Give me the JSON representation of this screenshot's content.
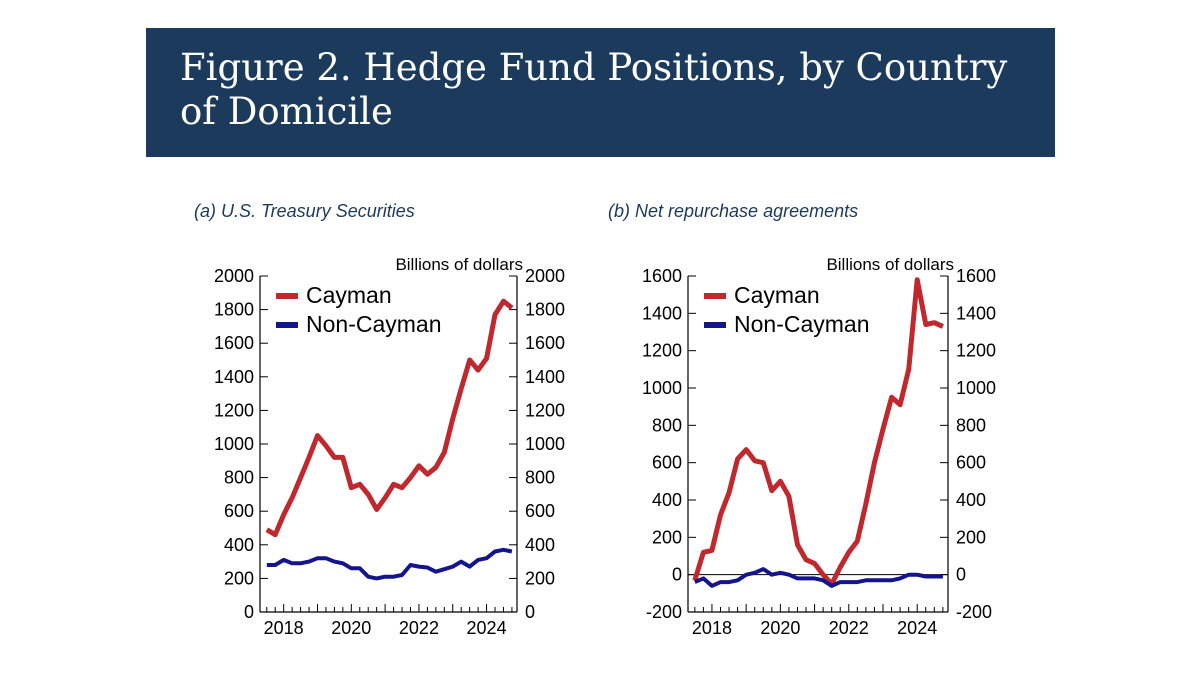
{
  "title": "Figure 2. Hedge Fund Positions, by Country of Domicile",
  "colors": {
    "banner": "#1b3a5c",
    "cayman": "#c0282d",
    "non_cayman": "#14148c"
  },
  "chart_data": [
    {
      "type": "line",
      "subtitle": "(a)  U.S. Treasury Securities",
      "unit_label": "Billions of dollars",
      "ylim": [
        0,
        2000
      ],
      "yticks": [
        0,
        200,
        400,
        600,
        800,
        1000,
        1200,
        1400,
        1600,
        1800,
        2000
      ],
      "xlim": [
        2017.3,
        2024.9
      ],
      "xticks": [
        2018,
        2020,
        2022,
        2024
      ],
      "legend_position": "top-left",
      "series": [
        {
          "name": "Cayman",
          "x": [
            2017.5,
            2017.75,
            2018.0,
            2018.25,
            2018.5,
            2018.75,
            2019.0,
            2019.25,
            2019.5,
            2019.75,
            2020.0,
            2020.25,
            2020.5,
            2020.75,
            2021.0,
            2021.25,
            2021.5,
            2021.75,
            2022.0,
            2022.25,
            2022.5,
            2022.75,
            2023.0,
            2023.25,
            2023.5,
            2023.75,
            2024.0,
            2024.25,
            2024.5,
            2024.75
          ],
          "y": [
            490,
            460,
            580,
            680,
            800,
            920,
            1050,
            990,
            920,
            920,
            740,
            760,
            700,
            610,
            680,
            760,
            740,
            800,
            870,
            820,
            860,
            950,
            1150,
            1330,
            1500,
            1440,
            1510,
            1770,
            1850,
            1810
          ]
        },
        {
          "name": "Non-Cayman",
          "x": [
            2017.5,
            2017.75,
            2018.0,
            2018.25,
            2018.5,
            2018.75,
            2019.0,
            2019.25,
            2019.5,
            2019.75,
            2020.0,
            2020.25,
            2020.5,
            2020.75,
            2021.0,
            2021.25,
            2021.5,
            2021.75,
            2022.0,
            2022.25,
            2022.5,
            2022.75,
            2023.0,
            2023.25,
            2023.5,
            2023.75,
            2024.0,
            2024.25,
            2024.5,
            2024.75
          ],
          "y": [
            280,
            280,
            310,
            290,
            290,
            300,
            320,
            320,
            300,
            290,
            260,
            260,
            210,
            200,
            210,
            210,
            220,
            280,
            270,
            265,
            240,
            255,
            270,
            300,
            270,
            310,
            320,
            360,
            370,
            360
          ]
        }
      ]
    },
    {
      "type": "line",
      "subtitle": "(b) Net repurchase agreements",
      "unit_label": "Billions of dollars",
      "ylim": [
        -200,
        1600
      ],
      "yticks": [
        -200,
        0,
        200,
        400,
        600,
        800,
        1000,
        1200,
        1400,
        1600
      ],
      "xlim": [
        2017.3,
        2024.9
      ],
      "xticks": [
        2018,
        2020,
        2022,
        2024
      ],
      "legend_position": "top-left",
      "zero_line": true,
      "series": [
        {
          "name": "Cayman",
          "x": [
            2017.5,
            2017.75,
            2018.0,
            2018.25,
            2018.5,
            2018.75,
            2019.0,
            2019.25,
            2019.5,
            2019.75,
            2020.0,
            2020.25,
            2020.5,
            2020.75,
            2021.0,
            2021.25,
            2021.5,
            2021.75,
            2022.0,
            2022.25,
            2022.5,
            2022.75,
            2023.0,
            2023.25,
            2023.5,
            2023.75,
            2024.0,
            2024.25,
            2024.5,
            2024.75
          ],
          "y": [
            -30,
            120,
            130,
            320,
            440,
            620,
            670,
            610,
            600,
            450,
            500,
            420,
            160,
            80,
            60,
            0,
            -50,
            40,
            120,
            180,
            380,
            600,
            780,
            950,
            910,
            1100,
            1580,
            1340,
            1350,
            1330
          ]
        },
        {
          "name": "Non-Cayman",
          "x": [
            2017.5,
            2017.75,
            2018.0,
            2018.25,
            2018.5,
            2018.75,
            2019.0,
            2019.25,
            2019.5,
            2019.75,
            2020.0,
            2020.25,
            2020.5,
            2020.75,
            2021.0,
            2021.25,
            2021.5,
            2021.75,
            2022.0,
            2022.25,
            2022.5,
            2022.75,
            2023.0,
            2023.25,
            2023.5,
            2023.75,
            2024.0,
            2024.25,
            2024.5,
            2024.75
          ],
          "y": [
            -40,
            -20,
            -60,
            -40,
            -40,
            -30,
            0,
            10,
            30,
            0,
            10,
            0,
            -20,
            -20,
            -20,
            -30,
            -60,
            -40,
            -40,
            -40,
            -30,
            -30,
            -30,
            -30,
            -20,
            0,
            0,
            -10,
            -10,
            -10
          ]
        }
      ]
    }
  ]
}
